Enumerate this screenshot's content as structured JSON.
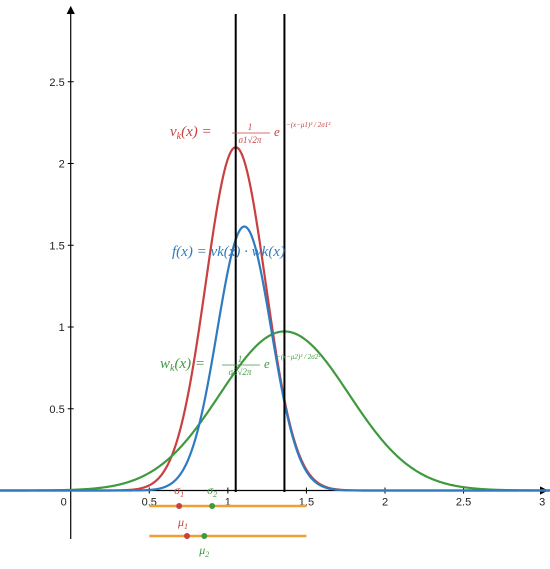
{
  "chart_data": {
    "type": "line",
    "title": "",
    "xlabel": "",
    "ylabel": "",
    "xlim": [
      -0.45,
      3.05
    ],
    "ylim": [
      -0.48,
      3.0
    ],
    "x_ticks": [
      0.5,
      1,
      1.5,
      2,
      2.5,
      3
    ],
    "x_tick_labels": [
      "0.5",
      "1",
      "1.5",
      "2",
      "2.5",
      "3"
    ],
    "y_ticks": [
      0.5,
      1,
      1.5,
      2,
      2.5
    ],
    "y_tick_labels": [
      "0.5",
      "1",
      "1.5",
      "2",
      "2.5"
    ],
    "origin_label": "0",
    "grid": false,
    "series": [
      {
        "key": "v",
        "color": "#c94040",
        "mu": 1.05,
        "sigma": 0.19,
        "kind": "gaussian"
      },
      {
        "key": "w",
        "color": "#3f9a3f",
        "mu": 1.36,
        "sigma": 0.41,
        "kind": "gaussian"
      },
      {
        "key": "f",
        "color": "#2e7bbf",
        "kind": "product",
        "of": [
          "v",
          "w"
        ]
      }
    ],
    "vertical_lines": [
      {
        "x": 1.05,
        "color": "#000000"
      },
      {
        "x": 1.36,
        "color": "#000000"
      }
    ],
    "annotations": [
      {
        "key": "v_formula",
        "color": "#c94040",
        "lhs": "vk(x) =",
        "fraction": "1 / (σ1√2π)",
        "exp_base": "e",
        "exponent": "−(x−μ1)² / 2σ1²"
      },
      {
        "key": "f_formula",
        "color": "#2e7bbf",
        "text": "f(x) = vk(x) · wk(x)"
      },
      {
        "key": "w_formula",
        "color": "#3f9a3f",
        "lhs": "wk(x) =",
        "fraction": "1 / (σ2√2π)",
        "exp_base": "e",
        "exponent": "−(x−μ2)² / 2σ2²"
      }
    ],
    "sliders": [
      {
        "key": "sigma",
        "line_color": "#f0a030",
        "x_range": [
          0.5,
          1.5
        ],
        "points": [
          {
            "label": "σ1",
            "value": 0.69,
            "color": "#c94040"
          },
          {
            "label": "σ2",
            "value": 0.9,
            "color": "#3f9a3f"
          }
        ]
      },
      {
        "key": "mu",
        "line_color": "#f0a030",
        "x_range": [
          0.5,
          1.5
        ],
        "points": [
          {
            "label": "μ1",
            "value": 0.74,
            "color": "#c94040"
          },
          {
            "label": "μ2",
            "value": 0.85,
            "color": "#3f9a3f"
          }
        ]
      }
    ]
  }
}
